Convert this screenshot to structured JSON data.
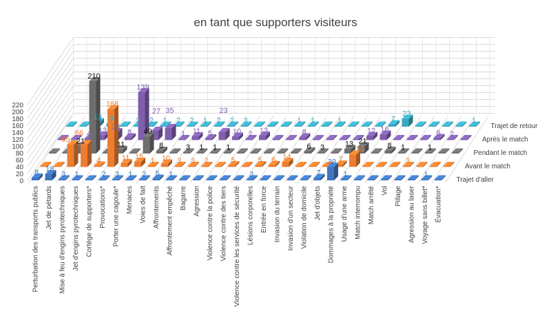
{
  "chart_data": {
    "type": "bar",
    "subtype": "3d-column",
    "title": "en tant que supporters visiteurs",
    "ylim": [
      0,
      220
    ],
    "yticks": [
      0,
      20,
      40,
      60,
      80,
      100,
      120,
      140,
      160,
      180,
      200,
      220
    ],
    "grid": true,
    "legend_placement": "right (series labels on depth axis)",
    "categories": [
      "Perturbation des transports publics",
      "Jet de pétards",
      "Mise à feu d'engins pyrotechniques",
      "Jet d'engins pyrotechniques",
      "Cortège de supporters*",
      "Provocations*",
      "Porter une cagoule*",
      "Menaces",
      "Voies de fait",
      "Affrontements",
      "Affrontement empêché",
      "Bagarre",
      "Agression",
      "Violence contre la police",
      "Violence contre des tiers",
      "Violence contre les services de sécurité",
      "Lésions corporelles",
      "Entrée en force",
      "Invasion du terrain",
      "Invasion d'un secteur",
      "Violation de domicile",
      "Jet d'objets",
      "Dommages à la propriété",
      "Usage d'une arme",
      "Match interrompu",
      "Match arrêté",
      "Vol",
      "Pillage",
      "Agression au laser",
      "Voyage sans billet*",
      "Évacuation*"
    ],
    "series": [
      {
        "name": "Trajet d'aller",
        "color": "#3f76bf",
        "values": [
          8,
          18,
          3,
          1,
          0,
          2,
          3,
          1,
          2,
          5,
          1,
          0,
          0,
          0,
          0,
          0,
          3,
          0,
          0,
          0,
          0,
          7,
          39,
          1,
          0,
          0,
          0,
          0,
          0,
          1,
          0
        ]
      },
      {
        "name": "Avant le match",
        "color": "#ed7d31",
        "values": [
          0,
          0,
          65,
          66,
          4,
          168,
          11,
          15,
          1,
          10,
          3,
          3,
          2,
          0,
          5,
          0,
          5,
          6,
          14,
          0,
          0,
          0,
          7,
          36,
          0,
          0,
          0,
          3,
          0,
          0,
          0
        ]
      },
      {
        "name": "Pendant le match",
        "color": "#6e6e6e",
        "values": [
          0,
          0,
          21,
          210,
          0,
          11,
          0,
          49,
          8,
          0,
          3,
          1,
          1,
          1,
          0,
          0,
          0,
          0,
          0,
          6,
          3,
          0,
          13,
          21,
          0,
          8,
          1,
          0,
          1,
          0,
          0
        ]
      },
      {
        "name": "Après le match",
        "color": "#7f5fad",
        "values": [
          0,
          0,
          4,
          13,
          23,
          8,
          139,
          27,
          35,
          1,
          11,
          5,
          23,
          10,
          2,
          13,
          0,
          0,
          8,
          0,
          0,
          0,
          0,
          12,
          16,
          0,
          0,
          0,
          6,
          2,
          0
        ]
      },
      {
        "name": "Trajet de retour",
        "color": "#3aa8c1",
        "values": [
          0,
          0,
          13,
          9,
          0,
          2,
          2,
          1,
          2,
          2,
          1,
          2,
          2,
          3,
          0,
          0,
          0,
          1,
          1,
          0,
          1,
          0,
          0,
          0,
          7,
          23,
          0,
          0,
          0,
          0,
          1
        ]
      }
    ]
  }
}
